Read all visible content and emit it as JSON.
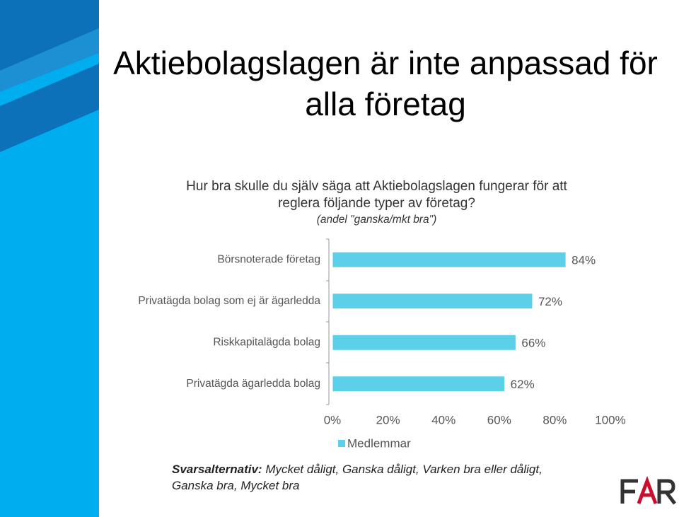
{
  "chart_data": {
    "type": "bar",
    "orientation": "horizontal",
    "title": "Aktiebolagslagen är inte anpassad för alla företag",
    "subtitle": "Hur bra skulle du själv säga att Aktiebolagslagen fungerar för att reglera följande typer av företag?",
    "note": "(andel \"ganska/mkt bra\")",
    "categories": [
      "Börsnoterade företag",
      "Privatägda bolag som ej är ägarledda",
      "Riskkapitalägda bolag",
      "Privatägda ägarledda bolag"
    ],
    "series": [
      {
        "name": "Medlemmar",
        "color": "#5ccfe9",
        "values": [
          84,
          72,
          66,
          62
        ],
        "value_labels": [
          "84%",
          "72%",
          "66%",
          "62%"
        ]
      }
    ],
    "xlim": [
      0,
      100
    ],
    "xticks": [
      {
        "value": 0,
        "label": "0%"
      },
      {
        "value": 20,
        "label": "20%"
      },
      {
        "value": 40,
        "label": "40%"
      },
      {
        "value": 60,
        "label": "60%"
      },
      {
        "value": 80,
        "label": "80%"
      },
      {
        "value": 100,
        "label": "100%"
      }
    ],
    "grid": false,
    "legend": "bottom",
    "footnote_label": "Svarsalternativ:",
    "footnote": "Mycket dåligt, Ganska dåligt, Varken bra eller dåligt, Ganska bra, Mycket bra"
  }
}
